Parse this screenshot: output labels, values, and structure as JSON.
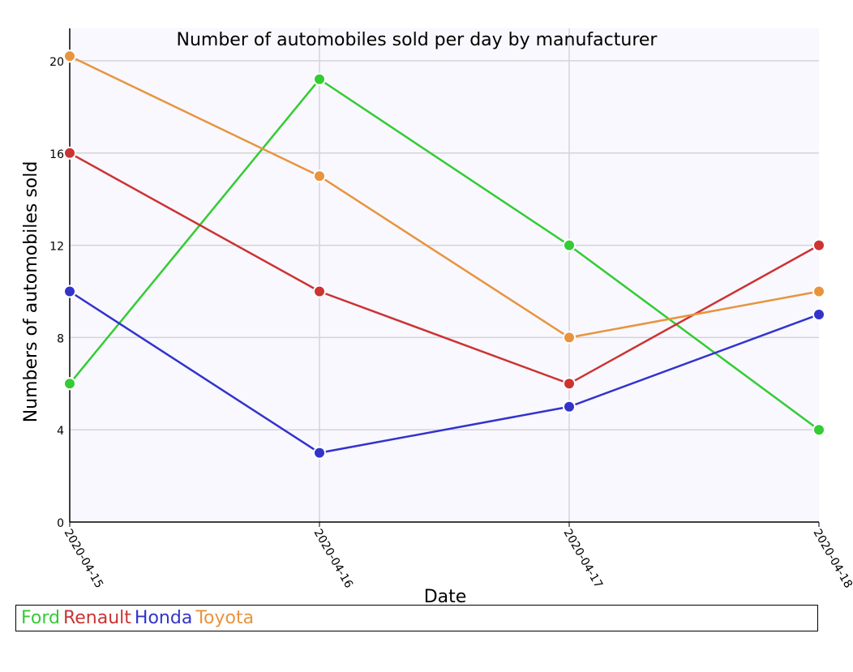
{
  "chart_data": {
    "type": "line",
    "title": "Number of automobiles sold per day by manufacturer",
    "xlabel": "Date",
    "ylabel": "Numbers of automobiles sold",
    "categories": [
      "2020-04-15",
      "2020-04-16",
      "2020-04-17",
      "2020-04-18"
    ],
    "ylim": [
      0,
      20
    ],
    "yticks": [
      0,
      4,
      8,
      12,
      16,
      20
    ],
    "grid": true,
    "legend_position": "bottom",
    "series": [
      {
        "name": "Ford",
        "color": "#33cc33",
        "values": [
          6,
          19.2,
          12,
          4
        ]
      },
      {
        "name": "Renault",
        "color": "#cc3333",
        "values": [
          16,
          10,
          6,
          12
        ]
      },
      {
        "name": "Honda",
        "color": "#3333cc",
        "values": [
          10,
          3,
          5,
          9
        ]
      },
      {
        "name": "Toyota",
        "color": "#e8943f",
        "values": [
          20.2,
          15,
          8,
          10
        ]
      }
    ]
  }
}
